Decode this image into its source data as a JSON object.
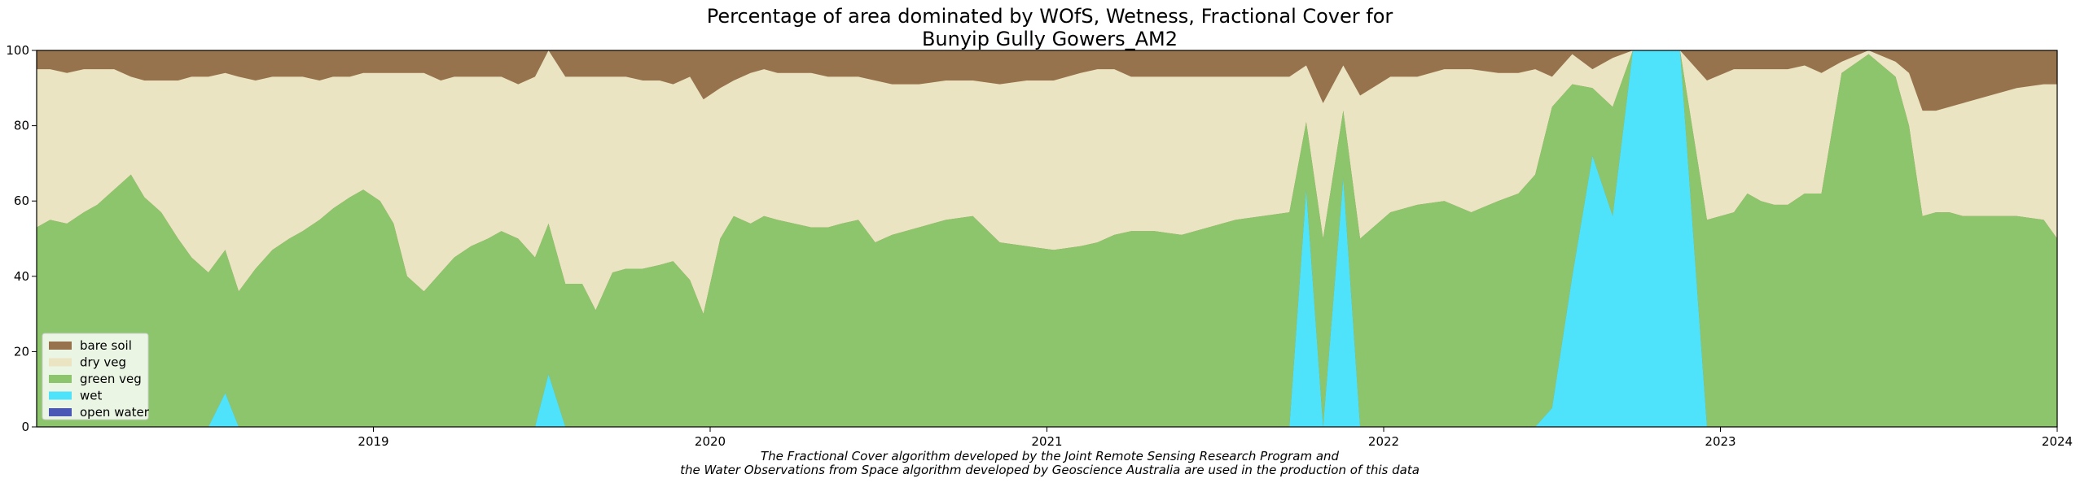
{
  "chart_data": {
    "type": "area",
    "stacked": true,
    "title_line1": "Percentage of area dominated by WOfS, Wetness, Fractional Cover for",
    "title_line2": "Bunyip Gully Gowers_AM2",
    "xlabel": "",
    "ylabel": "",
    "xlim": [
      2018.0,
      2024.0
    ],
    "ylim": [
      0,
      100
    ],
    "x_ticks": [
      {
        "value": 2019,
        "label": "2019"
      },
      {
        "value": 2020,
        "label": "2020"
      },
      {
        "value": 2021,
        "label": "2021"
      },
      {
        "value": 2022,
        "label": "2022"
      },
      {
        "value": 2023,
        "label": "2023"
      },
      {
        "value": 2024,
        "label": "2024"
      }
    ],
    "y_ticks": [
      {
        "value": 0,
        "label": "0"
      },
      {
        "value": 20,
        "label": "20"
      },
      {
        "value": 40,
        "label": "40"
      },
      {
        "value": 60,
        "label": "60"
      },
      {
        "value": 80,
        "label": "80"
      },
      {
        "value": 100,
        "label": "100"
      }
    ],
    "grid": false,
    "legend_position": "bottom-left",
    "x": [
      2018.0,
      2018.04,
      2018.09,
      2018.14,
      2018.18,
      2018.23,
      2018.28,
      2018.32,
      2018.37,
      2018.42,
      2018.46,
      2018.51,
      2018.56,
      2018.6,
      2018.65,
      2018.7,
      2018.75,
      2018.79,
      2018.84,
      2018.88,
      2018.93,
      2018.97,
      2019.02,
      2019.06,
      2019.1,
      2019.15,
      2019.2,
      2019.24,
      2019.29,
      2019.34,
      2019.38,
      2019.43,
      2019.48,
      2019.52,
      2019.57,
      2019.62,
      2019.66,
      2019.71,
      2019.75,
      2019.8,
      2019.85,
      2019.89,
      2019.94,
      2019.98,
      2020.03,
      2020.07,
      2020.12,
      2020.16,
      2020.2,
      2020.25,
      2020.3,
      2020.35,
      2020.39,
      2020.44,
      2020.49,
      2020.54,
      2020.62,
      2020.7,
      2020.78,
      2020.86,
      2020.94,
      2021.02,
      2021.1,
      2021.15,
      2021.2,
      2021.25,
      2021.32,
      2021.4,
      2021.48,
      2021.56,
      2021.64,
      2021.72,
      2021.77,
      2021.82,
      2021.88,
      2021.93,
      2022.02,
      2022.1,
      2022.18,
      2022.26,
      2022.34,
      2022.4,
      2022.45,
      2022.5,
      2022.56,
      2022.62,
      2022.68,
      2022.74,
      2022.8,
      2022.88,
      2022.96,
      2023.04,
      2023.08,
      2023.12,
      2023.16,
      2023.2,
      2023.25,
      2023.3,
      2023.36,
      2023.44,
      2023.52,
      2023.56,
      2023.6,
      2023.64,
      2023.68,
      2023.72,
      2023.8,
      2023.88,
      2023.96,
      2024.0
    ],
    "series": [
      {
        "name": "open water",
        "color": "#4b57b5",
        "values": [
          0,
          0,
          0,
          0,
          0,
          0,
          0,
          0,
          0,
          0,
          0,
          0,
          0,
          0,
          0,
          0,
          0,
          0,
          0,
          0,
          0,
          0,
          0,
          0,
          0,
          0,
          0,
          0,
          0,
          0,
          0,
          0,
          0,
          0,
          0,
          0,
          0,
          0,
          0,
          0,
          0,
          0,
          0,
          0,
          0,
          0,
          0,
          0,
          0,
          0,
          0,
          0,
          0,
          0,
          0,
          0,
          0,
          0,
          0,
          0,
          0,
          0,
          0,
          0,
          0,
          0,
          0,
          0,
          0,
          0,
          0,
          0,
          0,
          0,
          0,
          0,
          0,
          0,
          0,
          0,
          0,
          0,
          0,
          0,
          0,
          0,
          0,
          0,
          0,
          0,
          0,
          0,
          0,
          0,
          0,
          0,
          0,
          0,
          0,
          0,
          0,
          0,
          0,
          0,
          0,
          0,
          0,
          0,
          0,
          0
        ]
      },
      {
        "name": "wet",
        "color": "#4fe3fb",
        "values": [
          0,
          0,
          0,
          0,
          0,
          0,
          0,
          0,
          0,
          0,
          0,
          0,
          9,
          0,
          0,
          0,
          0,
          0,
          0,
          0,
          0,
          0,
          0,
          0,
          0,
          0,
          0,
          0,
          0,
          0,
          0,
          0,
          0,
          14,
          0,
          0,
          0,
          0,
          0,
          0,
          0,
          0,
          0,
          0,
          0,
          0,
          0,
          0,
          0,
          0,
          0,
          0,
          0,
          0,
          0,
          0,
          0,
          0,
          0,
          0,
          0,
          0,
          0,
          0,
          0,
          0,
          0,
          0,
          0,
          0,
          0,
          0,
          63,
          0,
          66,
          0,
          0,
          0,
          0,
          0,
          0,
          0,
          0,
          5,
          40,
          72,
          56,
          100,
          100,
          100,
          0,
          0,
          0,
          0,
          0,
          0,
          0,
          0,
          0,
          0,
          0,
          0,
          0,
          0,
          0,
          0,
          0,
          0,
          0,
          0
        ]
      },
      {
        "name": "green veg",
        "color": "#8dc56c",
        "values": [
          53,
          55,
          54,
          57,
          59,
          63,
          67,
          61,
          57,
          50,
          45,
          41,
          38,
          36,
          42,
          47,
          50,
          52,
          55,
          58,
          61,
          63,
          60,
          54,
          40,
          36,
          41,
          45,
          48,
          50,
          52,
          50,
          45,
          40,
          38,
          38,
          31,
          41,
          42,
          42,
          43,
          44,
          39,
          30,
          50,
          56,
          54,
          56,
          55,
          54,
          53,
          53,
          54,
          55,
          49,
          51,
          53,
          55,
          56,
          49,
          48,
          47,
          48,
          49,
          51,
          52,
          52,
          51,
          53,
          55,
          56,
          57,
          18,
          50,
          18,
          50,
          57,
          59,
          60,
          57,
          60,
          62,
          67,
          80,
          51,
          18,
          29,
          0,
          0,
          0,
          55,
          57,
          62,
          60,
          59,
          59,
          62,
          62,
          94,
          99,
          93,
          80,
          56,
          57,
          57,
          56,
          56,
          56,
          55,
          50
        ]
      },
      {
        "name": "dry veg",
        "color": "#ebe4c2",
        "values": [
          42,
          40,
          40,
          38,
          36,
          32,
          26,
          31,
          35,
          42,
          48,
          52,
          47,
          57,
          50,
          46,
          43,
          41,
          37,
          35,
          32,
          31,
          34,
          40,
          54,
          58,
          51,
          48,
          45,
          43,
          41,
          41,
          48,
          53,
          55,
          55,
          62,
          52,
          51,
          50,
          49,
          47,
          54,
          57,
          40,
          36,
          40,
          39,
          39,
          40,
          41,
          40,
          39,
          38,
          43,
          40,
          38,
          37,
          36,
          42,
          44,
          45,
          46,
          46,
          44,
          41,
          41,
          42,
          40,
          38,
          37,
          36,
          15,
          36,
          12,
          38,
          36,
          34,
          35,
          38,
          34,
          32,
          28,
          8,
          8,
          5,
          13,
          0,
          0,
          0,
          37,
          38,
          33,
          35,
          36,
          36,
          34,
          32,
          3,
          1,
          4,
          14,
          28,
          27,
          28,
          30,
          32,
          34,
          36,
          41
        ]
      }
    ],
    "top_series": {
      "name": "bare soil",
      "color": "#96734c",
      "fills_to": 100
    },
    "legend": [
      {
        "label": "bare soil",
        "color": "#96734c"
      },
      {
        "label": "dry veg",
        "color": "#ebe4c2"
      },
      {
        "label": "green veg",
        "color": "#8dc56c"
      },
      {
        "label": "wet",
        "color": "#4fe3fb"
      },
      {
        "label": "open water",
        "color": "#4b57b5"
      }
    ],
    "annotation_line1": "The Fractional Cover algorithm developed by the Joint Remote Sensing Research Program and",
    "annotation_line2": "the Water Observations from Space algorithm developed by Geoscience Australia are used in the production of this data"
  }
}
